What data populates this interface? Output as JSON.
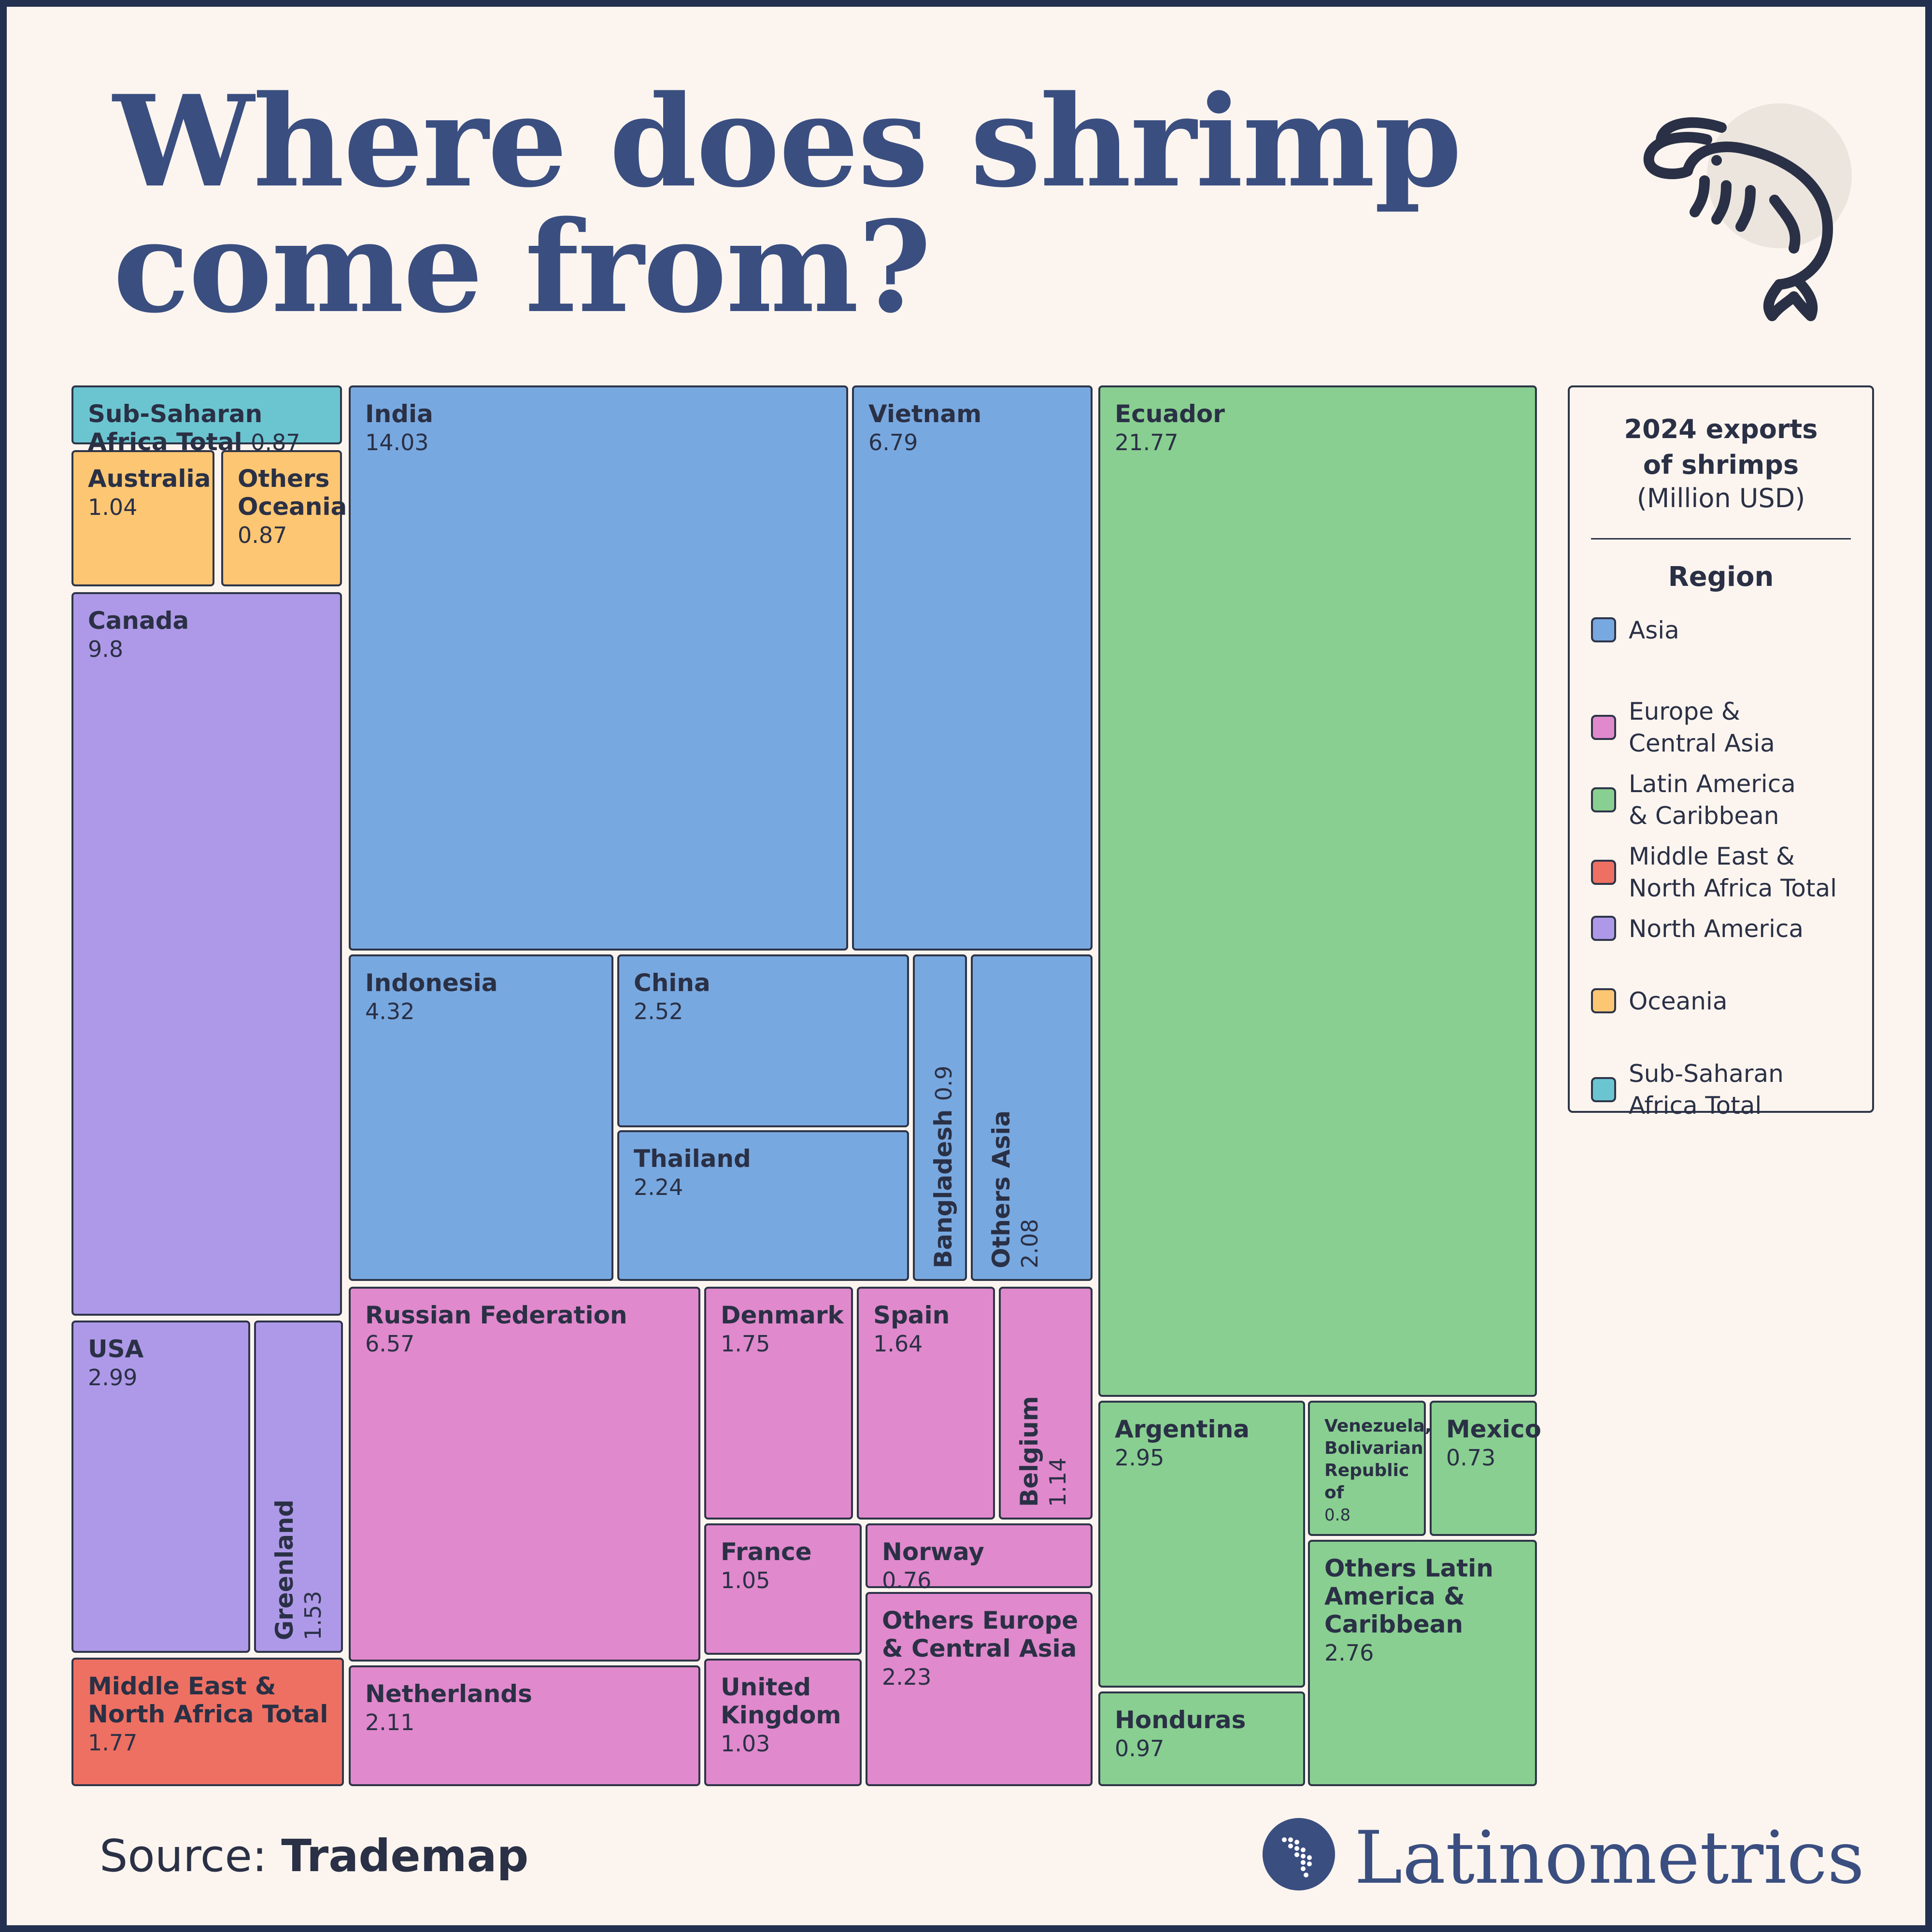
{
  "title_line1": "Where does shrimp",
  "title_line2": "come from?",
  "icon": "shrimp-icon",
  "source_label": "Source:",
  "source_value": "Trademap",
  "brand": "Latinometrics",
  "legend": {
    "title_line1": "2024 exports",
    "title_line2": "of shrimps",
    "unit": "(Million USD)",
    "heading": "Region",
    "items": [
      {
        "label": "Asia",
        "color": "#78a8e0"
      },
      {
        "label": "Europe &\nCentral Asia",
        "color": "#e089cc"
      },
      {
        "label": "Latin America\n& Caribbean",
        "color": "#89cf91"
      },
      {
        "label": "Middle East &\nNorth Africa Total",
        "color": "#ee7062"
      },
      {
        "label": "North America",
        "color": "#ae99e8"
      },
      {
        "label": "Oceania",
        "color": "#fdc673"
      },
      {
        "label": "Sub-Saharan\nAfrica Total",
        "color": "#6bc5d1"
      }
    ]
  },
  "chart_data": {
    "type": "treemap",
    "title": "Where does shrimp come from?",
    "value_label": "2024 exports of shrimps (Million USD)",
    "items": [
      {
        "name": "Ecuador",
        "value": 21.77,
        "region": "Latin America & Caribbean"
      },
      {
        "name": "India",
        "value": 14.03,
        "region": "Asia"
      },
      {
        "name": "Canada",
        "value": 9.8,
        "region": "North America"
      },
      {
        "name": "Vietnam",
        "value": 6.79,
        "region": "Asia"
      },
      {
        "name": "Russian Federation",
        "value": 6.57,
        "region": "Europe & Central Asia"
      },
      {
        "name": "Indonesia",
        "value": 4.32,
        "region": "Asia"
      },
      {
        "name": "USA",
        "value": 2.99,
        "region": "North America"
      },
      {
        "name": "Argentina",
        "value": 2.95,
        "region": "Latin America & Caribbean"
      },
      {
        "name": "Others Latin America & Caribbean",
        "value": 2.76,
        "region": "Latin America & Caribbean"
      },
      {
        "name": "China",
        "value": 2.52,
        "region": "Asia"
      },
      {
        "name": "Thailand",
        "value": 2.24,
        "region": "Asia"
      },
      {
        "name": "Others Europe & Central Asia",
        "value": 2.23,
        "region": "Europe & Central Asia"
      },
      {
        "name": "Netherlands",
        "value": 2.11,
        "region": "Europe & Central Asia"
      },
      {
        "name": "Others Asia",
        "value": 2.08,
        "region": "Asia"
      },
      {
        "name": "Middle East & North Africa Total",
        "value": 1.77,
        "region": "Middle East & North Africa Total"
      },
      {
        "name": "Denmark",
        "value": 1.75,
        "region": "Europe & Central Asia"
      },
      {
        "name": "Spain",
        "value": 1.64,
        "region": "Europe & Central Asia"
      },
      {
        "name": "Greenland",
        "value": 1.53,
        "region": "North America"
      },
      {
        "name": "Belgium",
        "value": 1.14,
        "region": "Europe & Central Asia"
      },
      {
        "name": "France",
        "value": 1.05,
        "region": "Europe & Central Asia"
      },
      {
        "name": "Australia",
        "value": 1.04,
        "region": "Oceania"
      },
      {
        "name": "United Kingdom",
        "value": 1.03,
        "region": "Europe & Central Asia"
      },
      {
        "name": "Honduras",
        "value": 0.97,
        "region": "Latin America & Caribbean"
      },
      {
        "name": "Bangladesh",
        "value": 0.9,
        "region": "Asia"
      },
      {
        "name": "Sub-Saharan Africa Total",
        "value": 0.87,
        "region": "Sub-Saharan Africa Total"
      },
      {
        "name": "Others Oceania",
        "value": 0.87,
        "region": "Oceania"
      },
      {
        "name": "Venezuela, Bolivarian Republic of",
        "value": 0.8,
        "region": "Latin America & Caribbean"
      },
      {
        "name": "Norway",
        "value": 0.76,
        "region": "Europe & Central Asia"
      },
      {
        "name": "Mexico",
        "value": 0.73,
        "region": "Latin America & Caribbean"
      }
    ]
  }
}
